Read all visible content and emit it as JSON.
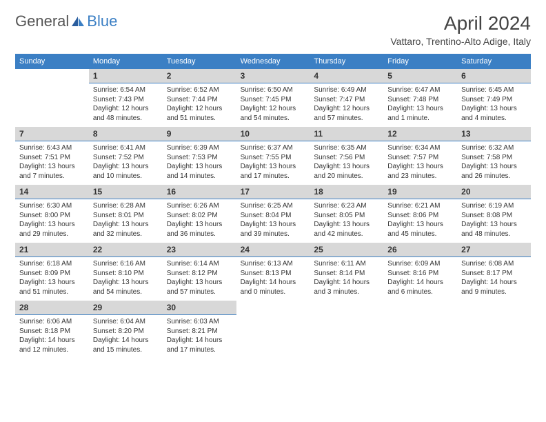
{
  "logo": {
    "text1": "General",
    "text2": "Blue"
  },
  "title": "April 2024",
  "location": "Vattaro, Trentino-Alto Adige, Italy",
  "accent_color": "#3b7fc4",
  "header_bg": "#3b7fc4",
  "date_bg": "#d8d8d8",
  "day_names": [
    "Sunday",
    "Monday",
    "Tuesday",
    "Wednesday",
    "Thursday",
    "Friday",
    "Saturday"
  ],
  "weeks": [
    [
      {
        "date": "",
        "sunrise": "",
        "sunset": "",
        "daylight": ""
      },
      {
        "date": "1",
        "sunrise": "Sunrise: 6:54 AM",
        "sunset": "Sunset: 7:43 PM",
        "daylight": "Daylight: 12 hours and 48 minutes."
      },
      {
        "date": "2",
        "sunrise": "Sunrise: 6:52 AM",
        "sunset": "Sunset: 7:44 PM",
        "daylight": "Daylight: 12 hours and 51 minutes."
      },
      {
        "date": "3",
        "sunrise": "Sunrise: 6:50 AM",
        "sunset": "Sunset: 7:45 PM",
        "daylight": "Daylight: 12 hours and 54 minutes."
      },
      {
        "date": "4",
        "sunrise": "Sunrise: 6:49 AM",
        "sunset": "Sunset: 7:47 PM",
        "daylight": "Daylight: 12 hours and 57 minutes."
      },
      {
        "date": "5",
        "sunrise": "Sunrise: 6:47 AM",
        "sunset": "Sunset: 7:48 PM",
        "daylight": "Daylight: 13 hours and 1 minute."
      },
      {
        "date": "6",
        "sunrise": "Sunrise: 6:45 AM",
        "sunset": "Sunset: 7:49 PM",
        "daylight": "Daylight: 13 hours and 4 minutes."
      }
    ],
    [
      {
        "date": "7",
        "sunrise": "Sunrise: 6:43 AM",
        "sunset": "Sunset: 7:51 PM",
        "daylight": "Daylight: 13 hours and 7 minutes."
      },
      {
        "date": "8",
        "sunrise": "Sunrise: 6:41 AM",
        "sunset": "Sunset: 7:52 PM",
        "daylight": "Daylight: 13 hours and 10 minutes."
      },
      {
        "date": "9",
        "sunrise": "Sunrise: 6:39 AM",
        "sunset": "Sunset: 7:53 PM",
        "daylight": "Daylight: 13 hours and 14 minutes."
      },
      {
        "date": "10",
        "sunrise": "Sunrise: 6:37 AM",
        "sunset": "Sunset: 7:55 PM",
        "daylight": "Daylight: 13 hours and 17 minutes."
      },
      {
        "date": "11",
        "sunrise": "Sunrise: 6:35 AM",
        "sunset": "Sunset: 7:56 PM",
        "daylight": "Daylight: 13 hours and 20 minutes."
      },
      {
        "date": "12",
        "sunrise": "Sunrise: 6:34 AM",
        "sunset": "Sunset: 7:57 PM",
        "daylight": "Daylight: 13 hours and 23 minutes."
      },
      {
        "date": "13",
        "sunrise": "Sunrise: 6:32 AM",
        "sunset": "Sunset: 7:58 PM",
        "daylight": "Daylight: 13 hours and 26 minutes."
      }
    ],
    [
      {
        "date": "14",
        "sunrise": "Sunrise: 6:30 AM",
        "sunset": "Sunset: 8:00 PM",
        "daylight": "Daylight: 13 hours and 29 minutes."
      },
      {
        "date": "15",
        "sunrise": "Sunrise: 6:28 AM",
        "sunset": "Sunset: 8:01 PM",
        "daylight": "Daylight: 13 hours and 32 minutes."
      },
      {
        "date": "16",
        "sunrise": "Sunrise: 6:26 AM",
        "sunset": "Sunset: 8:02 PM",
        "daylight": "Daylight: 13 hours and 36 minutes."
      },
      {
        "date": "17",
        "sunrise": "Sunrise: 6:25 AM",
        "sunset": "Sunset: 8:04 PM",
        "daylight": "Daylight: 13 hours and 39 minutes."
      },
      {
        "date": "18",
        "sunrise": "Sunrise: 6:23 AM",
        "sunset": "Sunset: 8:05 PM",
        "daylight": "Daylight: 13 hours and 42 minutes."
      },
      {
        "date": "19",
        "sunrise": "Sunrise: 6:21 AM",
        "sunset": "Sunset: 8:06 PM",
        "daylight": "Daylight: 13 hours and 45 minutes."
      },
      {
        "date": "20",
        "sunrise": "Sunrise: 6:19 AM",
        "sunset": "Sunset: 8:08 PM",
        "daylight": "Daylight: 13 hours and 48 minutes."
      }
    ],
    [
      {
        "date": "21",
        "sunrise": "Sunrise: 6:18 AM",
        "sunset": "Sunset: 8:09 PM",
        "daylight": "Daylight: 13 hours and 51 minutes."
      },
      {
        "date": "22",
        "sunrise": "Sunrise: 6:16 AM",
        "sunset": "Sunset: 8:10 PM",
        "daylight": "Daylight: 13 hours and 54 minutes."
      },
      {
        "date": "23",
        "sunrise": "Sunrise: 6:14 AM",
        "sunset": "Sunset: 8:12 PM",
        "daylight": "Daylight: 13 hours and 57 minutes."
      },
      {
        "date": "24",
        "sunrise": "Sunrise: 6:13 AM",
        "sunset": "Sunset: 8:13 PM",
        "daylight": "Daylight: 14 hours and 0 minutes."
      },
      {
        "date": "25",
        "sunrise": "Sunrise: 6:11 AM",
        "sunset": "Sunset: 8:14 PM",
        "daylight": "Daylight: 14 hours and 3 minutes."
      },
      {
        "date": "26",
        "sunrise": "Sunrise: 6:09 AM",
        "sunset": "Sunset: 8:16 PM",
        "daylight": "Daylight: 14 hours and 6 minutes."
      },
      {
        "date": "27",
        "sunrise": "Sunrise: 6:08 AM",
        "sunset": "Sunset: 8:17 PM",
        "daylight": "Daylight: 14 hours and 9 minutes."
      }
    ],
    [
      {
        "date": "28",
        "sunrise": "Sunrise: 6:06 AM",
        "sunset": "Sunset: 8:18 PM",
        "daylight": "Daylight: 14 hours and 12 minutes."
      },
      {
        "date": "29",
        "sunrise": "Sunrise: 6:04 AM",
        "sunset": "Sunset: 8:20 PM",
        "daylight": "Daylight: 14 hours and 15 minutes."
      },
      {
        "date": "30",
        "sunrise": "Sunrise: 6:03 AM",
        "sunset": "Sunset: 8:21 PM",
        "daylight": "Daylight: 14 hours and 17 minutes."
      },
      {
        "date": "",
        "sunrise": "",
        "sunset": "",
        "daylight": ""
      },
      {
        "date": "",
        "sunrise": "",
        "sunset": "",
        "daylight": ""
      },
      {
        "date": "",
        "sunrise": "",
        "sunset": "",
        "daylight": ""
      },
      {
        "date": "",
        "sunrise": "",
        "sunset": "",
        "daylight": ""
      }
    ]
  ]
}
